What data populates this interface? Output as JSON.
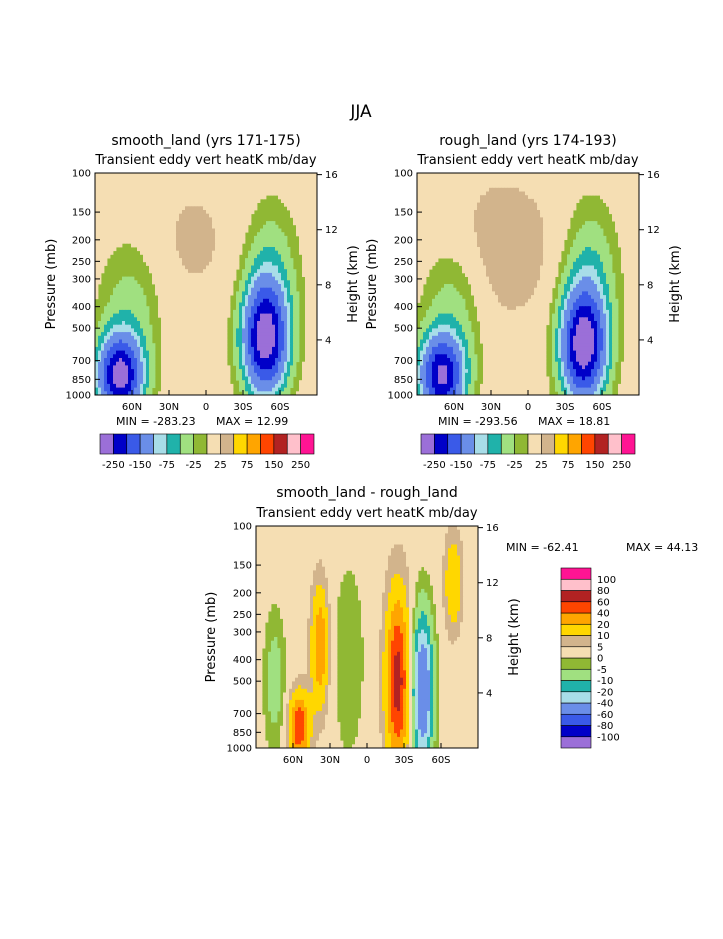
{
  "page_title": "JJA",
  "palette_main": [
    "#9b6fd8",
    "#0000c8",
    "#3a5ae8",
    "#6a8ee8",
    "#a8dde8",
    "#20b2aa",
    "#a0e080",
    "#90b834",
    "#f5deb3",
    "#d2b48c",
    "#ffd700",
    "#ffa500",
    "#ff4500",
    "#b22222",
    "#ffc0cb",
    "#ff1493"
  ],
  "palette_diff": [
    "#9b6fd8",
    "#0000c8",
    "#3a5ae8",
    "#6a8ee8",
    "#a8dde8",
    "#20b2aa",
    "#a0e080",
    "#90b834",
    "#f5deb3",
    "#d2b48c",
    "#ffd700",
    "#ffa500",
    "#ff4500",
    "#b22222",
    "#ffc0cb",
    "#ff1493"
  ],
  "chart_data": [
    {
      "type": "contour",
      "title": "smooth_land (yrs 171-175)",
      "subtitle": "Transient eddy vert heatK mb/day",
      "ylabel": "Pressure (mb)",
      "ylabel_right": "Height (km)",
      "x_ticks": [
        "60N",
        "30N",
        "0",
        "30S",
        "60S"
      ],
      "y_ticks": [
        "100",
        "150",
        "200",
        "250",
        "300",
        "400",
        "500",
        "700",
        "850",
        "1000"
      ],
      "y_ticks_right": [
        "16",
        "12",
        "8",
        "4"
      ],
      "min_label": "MIN = -283.23",
      "max_label": "MAX = 12.99",
      "colorbar_labels": [
        "-250",
        "-150",
        "-75",
        "-25",
        "25",
        "75",
        "150",
        "250"
      ],
      "level_scale": 1,
      "features": [
        {
          "x": 70,
          "p": 820,
          "amp": -270,
          "sx": 12,
          "sy": 0.28
        },
        {
          "x": 62,
          "p": 450,
          "amp": -40,
          "sx": 16,
          "sy": 0.5
        },
        {
          "x": -48,
          "p": 560,
          "amp": -280,
          "sx": 12,
          "sy": 0.38
        },
        {
          "x": -52,
          "p": 300,
          "amp": -50,
          "sx": 14,
          "sy": 0.5
        },
        {
          "x": 10,
          "p": 200,
          "amp": 12,
          "sx": 30,
          "sy": 0.6
        }
      ]
    },
    {
      "type": "contour",
      "title": "rough_land (yrs 174-193)",
      "subtitle": "Transient eddy vert heatK mb/day",
      "ylabel": "Pressure (mb)",
      "ylabel_right": "Height (km)",
      "x_ticks": [
        "60N",
        "30N",
        "0",
        "30S",
        "60S"
      ],
      "y_ticks": [
        "100",
        "150",
        "200",
        "250",
        "300",
        "400",
        "500",
        "700",
        "850",
        "1000"
      ],
      "y_ticks_right": [
        "16",
        "12",
        "8",
        "4"
      ],
      "min_label": "MIN = -293.56",
      "max_label": "MAX = 18.81",
      "colorbar_labels": [
        "-250",
        "-150",
        "-75",
        "-25",
        "25",
        "75",
        "150",
        "250"
      ],
      "level_scale": 1,
      "features": [
        {
          "x": 70,
          "p": 820,
          "amp": -250,
          "sx": 12,
          "sy": 0.28
        },
        {
          "x": 62,
          "p": 450,
          "amp": -40,
          "sx": 16,
          "sy": 0.5
        },
        {
          "x": -45,
          "p": 600,
          "amp": -290,
          "sx": 12,
          "sy": 0.38
        },
        {
          "x": -50,
          "p": 300,
          "amp": -55,
          "sx": 14,
          "sy": 0.5
        },
        {
          "x": 20,
          "p": 220,
          "amp": 18,
          "sx": 35,
          "sy": 0.6
        }
      ]
    },
    {
      "type": "contour",
      "title": "smooth_land - rough_land",
      "subtitle": "Transient eddy vert heatK mb/day",
      "ylabel": "Pressure (mb)",
      "ylabel_right": "Height (km)",
      "x_ticks": [
        "60N",
        "30N",
        "0",
        "30S",
        "60S"
      ],
      "y_ticks": [
        "100",
        "150",
        "200",
        "250",
        "300",
        "400",
        "500",
        "700",
        "850",
        "1000"
      ],
      "y_ticks_right": [
        "16",
        "12",
        "8",
        "4"
      ],
      "min_label": "MIN = -62.41",
      "max_label": "MAX = 44.13",
      "colorbar_labels": [
        "100",
        "80",
        "60",
        "40",
        "20",
        "10",
        "5",
        "0",
        "-5",
        "-10",
        "-20",
        "-40",
        "-60",
        "-80",
        "-100"
      ],
      "level_scale": 0.4,
      "features": [
        {
          "x": 55,
          "p": 800,
          "amp": 40,
          "sx": 6,
          "sy": 0.25
        },
        {
          "x": 38,
          "p": 350,
          "amp": 30,
          "sx": 5,
          "sy": 0.45
        },
        {
          "x": -25,
          "p": 500,
          "amp": 45,
          "sx": 7,
          "sy": 0.65
        },
        {
          "x": -45,
          "p": 550,
          "amp": -60,
          "sx": 6,
          "sy": 0.55
        },
        {
          "x": -70,
          "p": 180,
          "amp": 20,
          "sx": 5,
          "sy": 0.35
        },
        {
          "x": 75,
          "p": 500,
          "amp": -15,
          "sx": 6,
          "sy": 0.5
        },
        {
          "x": 15,
          "p": 400,
          "amp": -8,
          "sx": 10,
          "sy": 0.8
        }
      ]
    }
  ]
}
